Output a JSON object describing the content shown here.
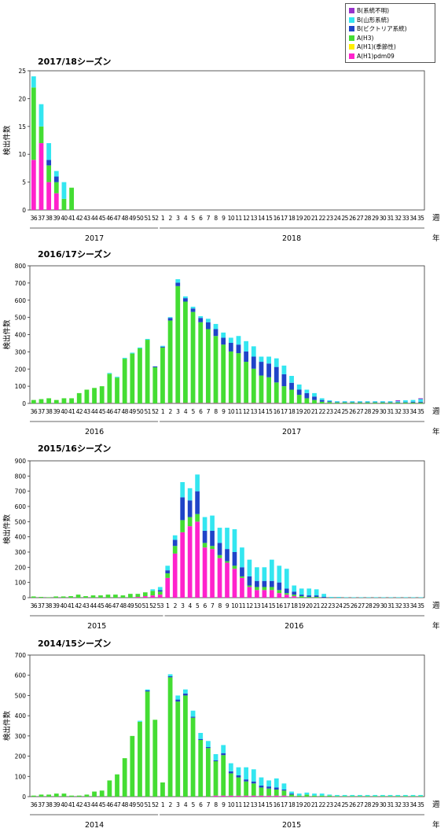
{
  "legend": [
    {
      "label": "B(系統不明)",
      "color": "#9933cc"
    },
    {
      "label": "B(山形系統)",
      "color": "#33e6f0"
    },
    {
      "label": "B(ビクトリア系統)",
      "color": "#1f44c8"
    },
    {
      "label": "A(H3)",
      "color": "#44dd33"
    },
    {
      "label": "A(H1)(季節性)",
      "color": "#ffee00"
    },
    {
      "label": "A(H1)pdm09",
      "color": "#ff22cc"
    }
  ],
  "axis_ylabel": "検出件数",
  "axis_week": "週",
  "axis_year": "年",
  "chart_data": [
    {
      "type": "bar",
      "title": "2017/18シーズン",
      "ylabel": "検出件数",
      "ylim": [
        0,
        25
      ],
      "yticks": [
        0,
        5,
        10,
        15,
        20,
        25
      ],
      "categories": [
        "36",
        "37",
        "38",
        "39",
        "40",
        "41",
        "42",
        "43",
        "44",
        "45",
        "46",
        "47",
        "48",
        "49",
        "50",
        "51",
        "52",
        "1",
        "2",
        "3",
        "4",
        "5",
        "6",
        "7",
        "8",
        "9",
        "10",
        "11",
        "12",
        "13",
        "14",
        "15",
        "16",
        "17",
        "18",
        "19",
        "20",
        "21",
        "22",
        "23",
        "24",
        "25",
        "26",
        "27",
        "28",
        "29",
        "30",
        "31",
        "32",
        "33",
        "34",
        "35"
      ],
      "years": [
        "2017",
        "2018"
      ],
      "series": [
        {
          "name": "A(H1)pdm09",
          "values": [
            9,
            12,
            5,
            3,
            0,
            0,
            0,
            0,
            0,
            0,
            0,
            0,
            0,
            0,
            0,
            0,
            0,
            0,
            0,
            0,
            0,
            0,
            0,
            0,
            0,
            0,
            0,
            0,
            0,
            0,
            0,
            0,
            0,
            0,
            0,
            0,
            0,
            0,
            0,
            0,
            0,
            0,
            0,
            0,
            0,
            0,
            0,
            0,
            0,
            0,
            0,
            0
          ]
        },
        {
          "name": "A(H3)",
          "values": [
            13,
            3,
            3,
            2,
            2,
            4,
            0,
            0,
            0,
            0,
            0,
            0,
            0,
            0,
            0,
            0,
            0,
            0,
            0,
            0,
            0,
            0,
            0,
            0,
            0,
            0,
            0,
            0,
            0,
            0,
            0,
            0,
            0,
            0,
            0,
            0,
            0,
            0,
            0,
            0,
            0,
            0,
            0,
            0,
            0,
            0,
            0,
            0,
            0,
            0,
            0,
            0
          ]
        },
        {
          "name": "B(ビクトリア系統)",
          "values": [
            0,
            0,
            1,
            1,
            0,
            0,
            0,
            0,
            0,
            0,
            0,
            0,
            0,
            0,
            0,
            0,
            0,
            0,
            0,
            0,
            0,
            0,
            0,
            0,
            0,
            0,
            0,
            0,
            0,
            0,
            0,
            0,
            0,
            0,
            0,
            0,
            0,
            0,
            0,
            0,
            0,
            0,
            0,
            0,
            0,
            0,
            0,
            0,
            0,
            0,
            0,
            0
          ]
        },
        {
          "name": "B(山形系統)",
          "values": [
            2,
            4,
            3,
            1,
            3,
            0,
            0,
            0,
            0,
            0,
            0,
            0,
            0,
            0,
            0,
            0,
            0,
            0,
            0,
            0,
            0,
            0,
            0,
            0,
            0,
            0,
            0,
            0,
            0,
            0,
            0,
            0,
            0,
            0,
            0,
            0,
            0,
            0,
            0,
            0,
            0,
            0,
            0,
            0,
            0,
            0,
            0,
            0,
            0,
            0,
            0,
            0
          ]
        }
      ]
    },
    {
      "type": "bar",
      "title": "2016/17シーズン",
      "ylabel": "検出件数",
      "ylim": [
        0,
        800
      ],
      "yticks": [
        0,
        100,
        200,
        300,
        400,
        500,
        600,
        700,
        800
      ],
      "categories": [
        "36",
        "37",
        "38",
        "39",
        "40",
        "41",
        "42",
        "43",
        "44",
        "45",
        "46",
        "47",
        "48",
        "49",
        "50",
        "51",
        "52",
        "1",
        "2",
        "3",
        "4",
        "5",
        "6",
        "7",
        "8",
        "9",
        "10",
        "11",
        "12",
        "13",
        "14",
        "15",
        "16",
        "17",
        "18",
        "19",
        "20",
        "21",
        "22",
        "23",
        "24",
        "25",
        "26",
        "27",
        "28",
        "29",
        "30",
        "31",
        "32",
        "33",
        "34",
        "35"
      ],
      "years": [
        "2016",
        "2017"
      ],
      "series": [
        {
          "name": "A(H1)pdm09",
          "values": [
            0,
            0,
            0,
            0,
            0,
            0,
            0,
            0,
            0,
            0,
            2,
            0,
            0,
            0,
            0,
            0,
            0,
            0,
            2,
            2,
            2,
            2,
            2,
            2,
            2,
            2,
            2,
            2,
            2,
            2,
            2,
            2,
            2,
            0,
            0,
            0,
            0,
            0,
            0,
            0,
            0,
            0,
            0,
            0,
            0,
            0,
            0,
            0,
            0,
            0,
            0,
            0
          ]
        },
        {
          "name": "A(H3)",
          "values": [
            20,
            25,
            30,
            20,
            30,
            30,
            60,
            80,
            90,
            100,
            170,
            150,
            260,
            290,
            320,
            370,
            210,
            325,
            480,
            680,
            590,
            530,
            470,
            430,
            390,
            340,
            300,
            290,
            240,
            200,
            160,
            150,
            120,
            100,
            80,
            50,
            30,
            20,
            10,
            8,
            5,
            5,
            5,
            5,
            5,
            5,
            5,
            5,
            5,
            5,
            5,
            5
          ]
        },
        {
          "name": "B(ビクトリア系統)",
          "values": [
            0,
            0,
            0,
            0,
            0,
            0,
            0,
            0,
            0,
            0,
            0,
            0,
            0,
            0,
            0,
            0,
            5,
            5,
            15,
            20,
            20,
            20,
            25,
            40,
            40,
            40,
            50,
            50,
            60,
            70,
            80,
            80,
            90,
            70,
            40,
            30,
            30,
            20,
            10,
            5,
            3,
            3,
            3,
            3,
            3,
            3,
            3,
            3,
            3,
            3,
            5,
            5
          ]
        },
        {
          "name": "B(山形系統)",
          "values": [
            0,
            0,
            0,
            0,
            0,
            0,
            0,
            0,
            0,
            0,
            5,
            5,
            5,
            5,
            5,
            5,
            0,
            5,
            5,
            20,
            10,
            10,
            10,
            20,
            30,
            30,
            30,
            50,
            60,
            60,
            30,
            40,
            50,
            50,
            40,
            30,
            20,
            20,
            10,
            5,
            5,
            5,
            5,
            5,
            5,
            5,
            5,
            5,
            5,
            10,
            10,
            15
          ]
        },
        {
          "name": "B(系統不明)",
          "values": [
            0,
            0,
            0,
            0,
            0,
            0,
            0,
            0,
            0,
            0,
            0,
            0,
            0,
            0,
            0,
            0,
            0,
            0,
            0,
            0,
            0,
            0,
            0,
            0,
            0,
            0,
            0,
            0,
            0,
            0,
            0,
            0,
            0,
            0,
            0,
            0,
            0,
            0,
            0,
            0,
            0,
            0,
            0,
            0,
            0,
            0,
            0,
            0,
            5,
            0,
            0,
            5
          ]
        }
      ]
    },
    {
      "type": "bar",
      "title": "2015/16シーズン",
      "ylabel": "検出件数",
      "ylim": [
        0,
        900
      ],
      "yticks": [
        0,
        100,
        200,
        300,
        400,
        500,
        600,
        700,
        800,
        900
      ],
      "categories": [
        "36",
        "37",
        "38",
        "39",
        "40",
        "41",
        "42",
        "43",
        "44",
        "45",
        "46",
        "47",
        "48",
        "49",
        "50",
        "51",
        "52",
        "53",
        "1",
        "2",
        "3",
        "4",
        "5",
        "6",
        "7",
        "8",
        "9",
        "10",
        "11",
        "12",
        "13",
        "14",
        "15",
        "16",
        "17",
        "18",
        "19",
        "20",
        "21",
        "22",
        "23",
        "24",
        "25",
        "26",
        "27",
        "28",
        "29",
        "30",
        "31",
        "32",
        "33",
        "34",
        "35"
      ],
      "years": [
        "2015",
        "2016"
      ],
      "series": [
        {
          "name": "A(H1)pdm09",
          "values": [
            0,
            0,
            0,
            0,
            0,
            0,
            0,
            0,
            0,
            0,
            0,
            0,
            0,
            0,
            5,
            10,
            15,
            20,
            130,
            290,
            430,
            470,
            500,
            330,
            320,
            260,
            230,
            190,
            130,
            70,
            50,
            50,
            50,
            30,
            20,
            10,
            0,
            0,
            0,
            0,
            0,
            0,
            0,
            0,
            0,
            0,
            0,
            0,
            0,
            0,
            0,
            0,
            0
          ]
        },
        {
          "name": "A(H3)",
          "values": [
            8,
            5,
            3,
            8,
            8,
            10,
            20,
            10,
            15,
            15,
            20,
            20,
            15,
            25,
            20,
            25,
            30,
            20,
            30,
            50,
            80,
            60,
            50,
            30,
            20,
            20,
            10,
            20,
            10,
            10,
            20,
            20,
            20,
            20,
            10,
            10,
            10,
            5,
            5,
            0,
            0,
            0,
            0,
            0,
            0,
            0,
            0,
            0,
            0,
            0,
            0,
            0,
            0
          ]
        },
        {
          "name": "B(ビクトリア系統)",
          "values": [
            0,
            0,
            0,
            0,
            0,
            0,
            0,
            0,
            0,
            0,
            0,
            0,
            0,
            0,
            0,
            0,
            0,
            10,
            20,
            40,
            150,
            110,
            150,
            80,
            100,
            80,
            80,
            90,
            60,
            60,
            40,
            40,
            40,
            50,
            30,
            20,
            10,
            10,
            10,
            5,
            0,
            0,
            0,
            0,
            0,
            0,
            0,
            0,
            0,
            0,
            0,
            0,
            0
          ]
        },
        {
          "name": "B(山形系統)",
          "values": [
            0,
            0,
            0,
            0,
            0,
            0,
            0,
            0,
            0,
            0,
            0,
            0,
            0,
            0,
            0,
            0,
            10,
            20,
            30,
            30,
            100,
            80,
            110,
            90,
            100,
            100,
            140,
            150,
            130,
            110,
            90,
            90,
            140,
            110,
            130,
            40,
            40,
            45,
            40,
            20,
            5,
            5,
            3,
            3,
            3,
            3,
            3,
            3,
            3,
            3,
            3,
            3,
            3
          ]
        }
      ]
    },
    {
      "type": "bar",
      "title": "2014/15シーズン",
      "ylabel": "検出件数",
      "ylim": [
        0,
        700
      ],
      "yticks": [
        0,
        100,
        200,
        300,
        400,
        500,
        600,
        700
      ],
      "categories": [
        "36",
        "37",
        "38",
        "39",
        "40",
        "41",
        "42",
        "43",
        "44",
        "45",
        "46",
        "47",
        "48",
        "49",
        "50",
        "51",
        "52",
        "1",
        "2",
        "3",
        "4",
        "5",
        "6",
        "7",
        "8",
        "9",
        "10",
        "11",
        "12",
        "13",
        "14",
        "15",
        "16",
        "17",
        "18",
        "19",
        "20",
        "21",
        "22",
        "23",
        "24",
        "25",
        "26",
        "27",
        "28",
        "29",
        "30",
        "31",
        "32",
        "33",
        "34",
        "35"
      ],
      "years": [
        "2014",
        "2015"
      ],
      "series": [
        {
          "name": "A(H1)pdm09",
          "values": [
            0,
            0,
            0,
            0,
            0,
            0,
            0,
            0,
            0,
            0,
            0,
            0,
            0,
            0,
            0,
            0,
            0,
            0,
            0,
            0,
            0,
            0,
            0,
            0,
            5,
            5,
            5,
            5,
            5,
            5,
            5,
            5,
            5,
            5,
            0,
            0,
            0,
            0,
            0,
            0,
            0,
            0,
            0,
            0,
            0,
            0,
            0,
            0,
            0,
            0,
            0,
            0
          ]
        },
        {
          "name": "A(H3)",
          "values": [
            5,
            10,
            10,
            15,
            15,
            5,
            5,
            10,
            25,
            30,
            80,
            110,
            190,
            300,
            370,
            520,
            380,
            70,
            590,
            470,
            500,
            390,
            280,
            240,
            170,
            200,
            110,
            90,
            70,
            60,
            40,
            35,
            30,
            25,
            10,
            5,
            10,
            5,
            5,
            5,
            3,
            3,
            3,
            3,
            3,
            3,
            3,
            3,
            3,
            3,
            3,
            3
          ]
        },
        {
          "name": "B(ビクトリア系統)",
          "values": [
            0,
            0,
            0,
            0,
            0,
            0,
            0,
            0,
            0,
            0,
            0,
            0,
            0,
            0,
            0,
            5,
            0,
            0,
            5,
            10,
            10,
            5,
            5,
            5,
            5,
            10,
            10,
            10,
            10,
            10,
            10,
            10,
            10,
            5,
            5,
            0,
            0,
            0,
            0,
            0,
            0,
            0,
            0,
            0,
            0,
            0,
            0,
            0,
            0,
            0,
            0,
            0
          ]
        },
        {
          "name": "B(山形系統)",
          "values": [
            0,
            0,
            0,
            0,
            0,
            0,
            0,
            0,
            0,
            0,
            0,
            0,
            0,
            0,
            5,
            5,
            0,
            0,
            10,
            20,
            20,
            30,
            30,
            30,
            30,
            40,
            40,
            40,
            60,
            60,
            40,
            30,
            45,
            30,
            10,
            10,
            10,
            10,
            10,
            5,
            5,
            5,
            5,
            5,
            5,
            5,
            5,
            5,
            5,
            5,
            5,
            5
          ]
        }
      ]
    }
  ]
}
